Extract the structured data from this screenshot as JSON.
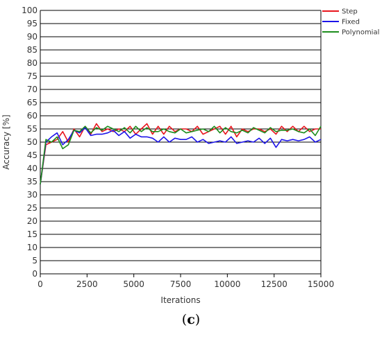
{
  "caption": {
    "open": "(",
    "letter": "c",
    "close": ")"
  },
  "chart_data": {
    "type": "line",
    "xlabel": "Iterations",
    "ylabel": "Accuracy [%]",
    "xlim": [
      0,
      15000
    ],
    "ylim": [
      0,
      100
    ],
    "xticks": [
      "0",
      "2500",
      "5000",
      "7500",
      "10000",
      "12500",
      "15000"
    ],
    "yticks": [
      "0",
      "5",
      "10",
      "15",
      "20",
      "25",
      "30",
      "35",
      "40",
      "45",
      "50",
      "55",
      "60",
      "65",
      "70",
      "75",
      "80",
      "85",
      "90",
      "95",
      "100"
    ],
    "grid": "horizontal",
    "legend_position": "top-right",
    "x": [
      0,
      300,
      600,
      900,
      1200,
      1500,
      1800,
      2100,
      2400,
      2700,
      3000,
      3300,
      3600,
      3900,
      4200,
      4500,
      4800,
      5100,
      5400,
      5700,
      6000,
      6300,
      6600,
      6900,
      7200,
      7500,
      7800,
      8100,
      8400,
      8700,
      9000,
      9300,
      9600,
      9900,
      10200,
      10500,
      10800,
      11100,
      11400,
      11700,
      12000,
      12300,
      12600,
      12900,
      13200,
      13500,
      13800,
      14100,
      14400,
      14700,
      15000
    ],
    "series": [
      {
        "name": "Step",
        "color": "#e8141c",
        "values": [
          34,
          49,
          50,
          51,
          54,
          50,
          55,
          52,
          56,
          53,
          57,
          54,
          55,
          54,
          55,
          54,
          56,
          53,
          55,
          57,
          53,
          56,
          53,
          56,
          54,
          55,
          55,
          54,
          56,
          53,
          54,
          55,
          56,
          53,
          56,
          52,
          55,
          54,
          55,
          55,
          54,
          55,
          53,
          56,
          54,
          56,
          54,
          56,
          54,
          55,
          55
        ]
      },
      {
        "name": "Fixed",
        "color": "#1c14e8",
        "values": [
          34,
          50,
          52,
          53.5,
          49,
          51,
          54.5,
          53.5,
          55.5,
          52.5,
          53,
          53,
          53.5,
          54.5,
          52.5,
          54,
          51.5,
          53,
          52,
          52,
          51.5,
          50,
          52,
          50,
          51.5,
          51,
          51,
          52,
          50,
          51,
          49.5,
          50,
          50.5,
          50,
          52,
          49.5,
          50,
          50.5,
          50,
          51.5,
          49.5,
          51.5,
          48,
          51,
          50.5,
          51,
          50.5,
          51,
          52,
          50,
          51
        ]
      },
      {
        "name": "Polynomial",
        "color": "#1c8c1c",
        "values": [
          34,
          51,
          50,
          52,
          47.5,
          49,
          54.5,
          54,
          56,
          53.5,
          55.5,
          54.5,
          56,
          55,
          54,
          55.5,
          53.5,
          56,
          54,
          55.5,
          54,
          54,
          55,
          54,
          53.5,
          55,
          53.5,
          54,
          54.5,
          55,
          54,
          56,
          53.5,
          55.5,
          54,
          53.5,
          54.5,
          53.5,
          55.5,
          54.5,
          53.5,
          55.5,
          54,
          54.5,
          54.5,
          55,
          54,
          53.5,
          55,
          52.5,
          56
        ]
      }
    ]
  }
}
